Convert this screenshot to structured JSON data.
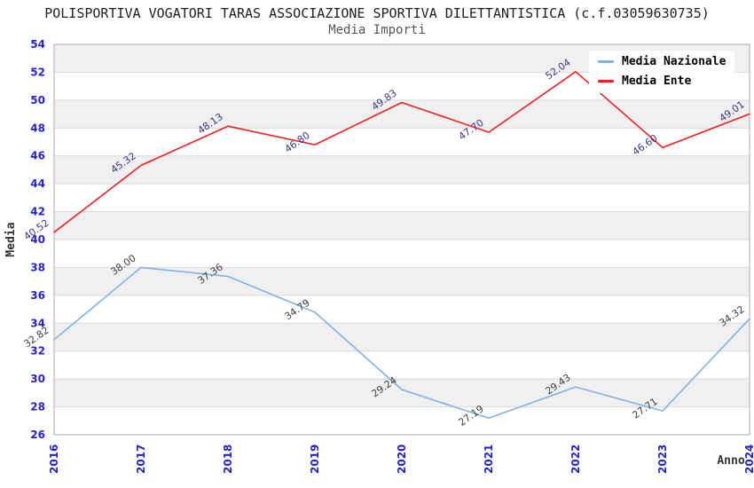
{
  "header": {
    "title": "POLISPORTIVA VOGATORI TARAS ASSOCIAZIONE SPORTIVA DILETTANTISTICA (c.f.03059630735)",
    "subtitle": "Media Importi"
  },
  "chart_data": {
    "type": "line",
    "x": [
      2016,
      2017,
      2018,
      2019,
      2020,
      2021,
      2022,
      2023,
      2024
    ],
    "series": [
      {
        "name": "Media Nazionale",
        "color": "#7fb2e5",
        "label_color": "#3f3f3f",
        "values": [
          32.82,
          38.0,
          37.36,
          34.79,
          29.24,
          27.19,
          29.43,
          27.71,
          34.32
        ]
      },
      {
        "name": "Media Ente",
        "color": "#f02020",
        "label_color": "#38388c",
        "values": [
          40.52,
          45.32,
          48.13,
          46.8,
          49.83,
          47.7,
          52.04,
          46.6,
          49.01
        ]
      }
    ],
    "xlabel": "Anno",
    "ylabel": "Media",
    "ylim": [
      26,
      54
    ],
    "ytick_step": 2,
    "yticks": [
      26,
      28,
      30,
      32,
      34,
      36,
      38,
      40,
      42,
      44,
      46,
      48,
      50,
      52,
      54
    ],
    "grid": true,
    "banded_background": true,
    "legend_position": "top-right",
    "style": {
      "tick_color": "#2323cd",
      "axis_title_color": "#333333",
      "band_fill": "#f0f0f0",
      "gridline_color": "#d9d9d9",
      "border_color": "#ababab",
      "plot_bg": "#ffffff"
    }
  }
}
